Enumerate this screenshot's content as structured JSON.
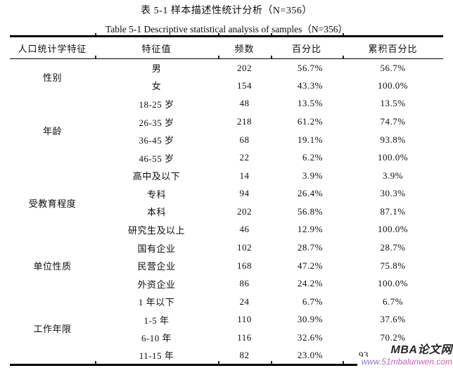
{
  "page": {
    "title_zh": "表 5-1 样本描述性统计分析（N=356）",
    "title_en": "Table 5-1 Descriptive statistical analysis of samples（N=356）"
  },
  "table": {
    "headers": [
      "人口统计学特征",
      "特征值",
      "频数",
      "百分比",
      "累积百分比"
    ],
    "groups": [
      {
        "category": "性别",
        "rows": [
          {
            "value": "男",
            "frequency": "202",
            "percentage": "56.7%",
            "cumulative": "56.7%"
          },
          {
            "value": "女",
            "frequency": "154",
            "percentage": "43.3%",
            "cumulative": "100.0%"
          }
        ]
      },
      {
        "category": "年龄",
        "rows": [
          {
            "value": "18-25 岁",
            "frequency": "48",
            "percentage": "13.5%",
            "cumulative": "13.5%"
          },
          {
            "value": "26-35 岁",
            "frequency": "218",
            "percentage": "61.2%",
            "cumulative": "74.7%"
          },
          {
            "value": "36-45 岁",
            "frequency": "68",
            "percentage": "19.1%",
            "cumulative": "93.8%"
          },
          {
            "value": "46-55 岁",
            "frequency": "22",
            "percentage": "6.2%",
            "cumulative": "100.0%"
          }
        ]
      },
      {
        "category": "受教育程度",
        "rows": [
          {
            "value": "高中及以下",
            "frequency": "14",
            "percentage": "3.9%",
            "cumulative": "3.9%"
          },
          {
            "value": "专科",
            "frequency": "94",
            "percentage": "26.4%",
            "cumulative": "30.3%"
          },
          {
            "value": "本科",
            "frequency": "202",
            "percentage": "56.8%",
            "cumulative": "87.1%"
          },
          {
            "value": "研究生及以上",
            "frequency": "46",
            "percentage": "12.9%",
            "cumulative": "100.0%"
          }
        ]
      },
      {
        "category": "单位性质",
        "rows": [
          {
            "value": "国有企业",
            "frequency": "102",
            "percentage": "28.7%",
            "cumulative": "28.7%"
          },
          {
            "value": "民营企业",
            "frequency": "168",
            "percentage": "47.2%",
            "cumulative": "75.8%"
          },
          {
            "value": "外资企业",
            "frequency": "86",
            "percentage": "24.2%",
            "cumulative": "100.0%"
          }
        ]
      },
      {
        "category": "工作年限",
        "rows": [
          {
            "value": "1 年以下",
            "frequency": "24",
            "percentage": "6.7%",
            "cumulative": "6.7%"
          },
          {
            "value": "1-5 年",
            "frequency": "110",
            "percentage": "30.9%",
            "cumulative": "37.6%"
          },
          {
            "value": "6-10 年",
            "frequency": "116",
            "percentage": "32.6%",
            "cumulative": "70.2%"
          },
          {
            "value": "11-15 年",
            "frequency": "82",
            "percentage": "23.0%",
            "cumulative": "93.",
            "cumulative_partial": true
          }
        ]
      }
    ]
  },
  "watermark": {
    "name": "MBA论文网",
    "url": "www.51mbalunwen.com",
    "name_color": "#262626",
    "url_color_start": "#7d7ad4",
    "url_color_end": "#ef519e"
  },
  "colors": {
    "text": "#0d0d0d",
    "background": "#ffffff",
    "rule": "#000000"
  }
}
